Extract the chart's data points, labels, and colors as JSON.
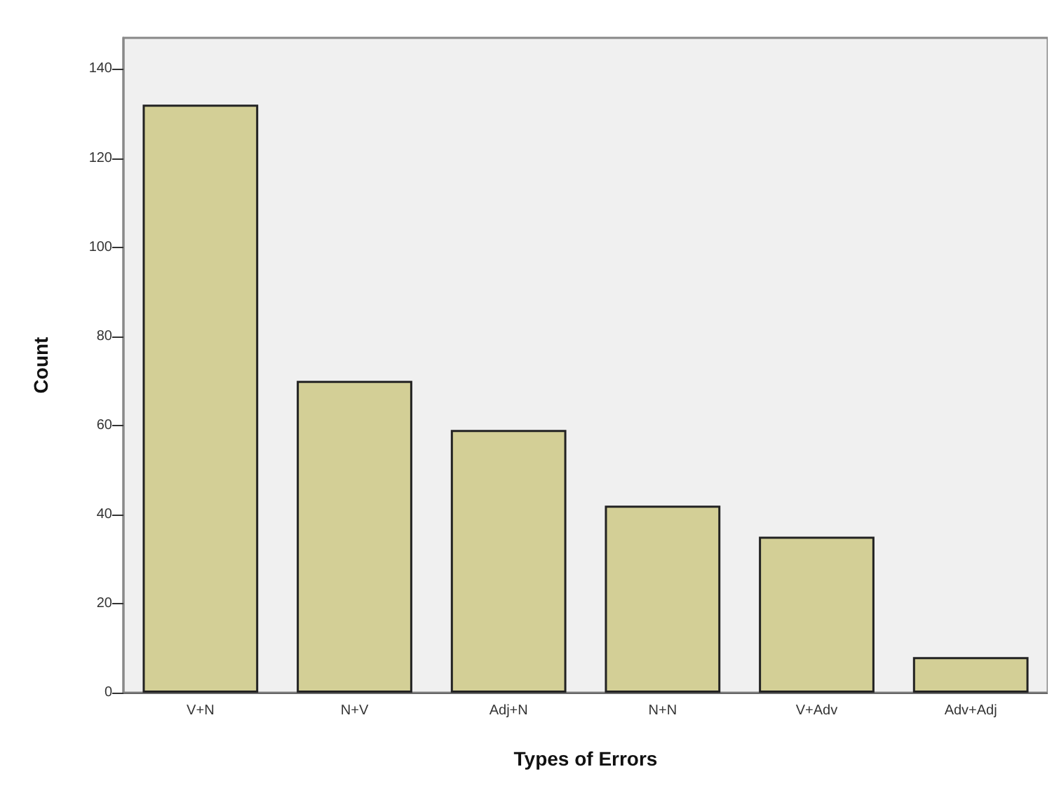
{
  "chart_data": {
    "type": "bar",
    "xlabel": "Types of Errors",
    "ylabel": "Count",
    "categories": [
      "V+N",
      "N+V",
      "Adj+N",
      "N+N",
      "V+Adv",
      "Adv+Adj"
    ],
    "values": [
      132,
      70,
      59,
      42,
      35,
      8
    ],
    "color": "#d3cf96",
    "ylim": [
      0,
      147
    ],
    "yticks": [
      0,
      20,
      40,
      60,
      80,
      100,
      120,
      140
    ],
    "grid": false
  }
}
